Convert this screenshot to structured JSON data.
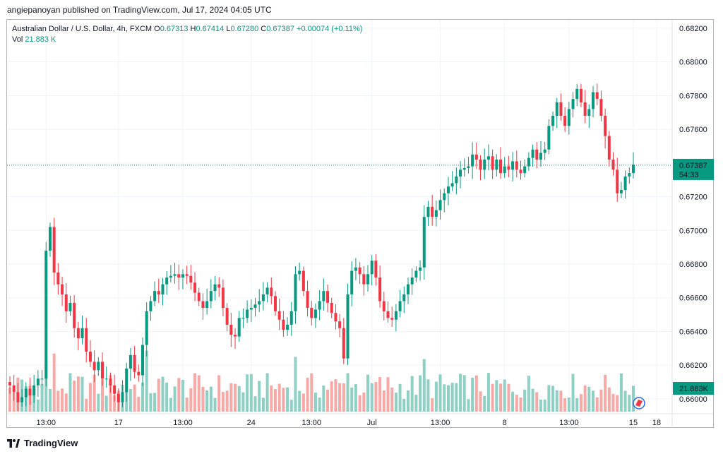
{
  "header": {
    "publish_line": "angiepanoyan published on TradingView.com, Jul 17, 2024 04:05 UTC"
  },
  "legend": {
    "symbol": "Australian Dollar / U.S. Dollar, 4h, FXCM",
    "open_label": "O",
    "open": "0.67313",
    "high_label": "H",
    "high": "0.67414",
    "low_label": "L",
    "low": "0.67280",
    "close_label": "C",
    "close": "0.67387",
    "change": "+0.00074 (+0.11%)",
    "vol_label": "Vol",
    "vol_value": "21.883 K"
  },
  "price_axis": {
    "labels": [
      "0.68200",
      "0.68000",
      "0.67800",
      "0.67600",
      "0.67400",
      "0.67200",
      "0.67000",
      "0.66800",
      "0.66600",
      "0.66400",
      "0.66200",
      "0.66000"
    ],
    "current_price_label": "0.67387",
    "countdown": "54:33",
    "volume_badge": "21.883K"
  },
  "time_axis": {
    "labels": [
      "13:00",
      "17",
      "13:00",
      "24",
      "13:00",
      "Jul",
      "13:00",
      "8",
      "13:00",
      "15",
      "18"
    ]
  },
  "footer": {
    "brand": "TradingView"
  },
  "colors": {
    "up": "#089981",
    "down": "#f23645",
    "vol_up": "#8fd0c5",
    "vol_down": "#f7a9a7",
    "grid": "#f0f3fa"
  },
  "chart_data": {
    "type": "candlestick",
    "symbol": "AUDUSD",
    "timeframe": "4h",
    "ylim": [
      0.6592,
      0.6825
    ],
    "y_ticks": [
      0.682,
      0.68,
      0.678,
      0.676,
      0.674,
      0.672,
      0.67,
      0.668,
      0.666,
      0.664,
      0.662,
      0.66
    ],
    "x_ticks": [
      "13:00",
      "17",
      "13:00",
      "24",
      "13:00",
      "Jul",
      "13:00",
      "8",
      "13:00",
      "15",
      "18"
    ],
    "last_price": 0.67387,
    "closes": [
      0.6608,
      0.6604,
      0.6598,
      0.6601,
      0.6606,
      0.6602,
      0.6608,
      0.6612,
      0.6612,
      0.6688,
      0.6702,
      0.6675,
      0.6668,
      0.6662,
      0.6652,
      0.6657,
      0.6642,
      0.6636,
      0.6642,
      0.6628,
      0.6622,
      0.6617,
      0.6622,
      0.6612,
      0.6612,
      0.6608,
      0.6603,
      0.6598,
      0.6604,
      0.6618,
      0.6626,
      0.6616,
      0.6614,
      0.6632,
      0.6652,
      0.6658,
      0.6664,
      0.6662,
      0.6668,
      0.6672,
      0.6673,
      0.6674,
      0.6672,
      0.6674,
      0.6673,
      0.6669,
      0.6663,
      0.6658,
      0.6654,
      0.6658,
      0.6664,
      0.6668,
      0.6666,
      0.6654,
      0.6644,
      0.6638,
      0.6637,
      0.6648,
      0.6648,
      0.6653,
      0.6654,
      0.6656,
      0.6658,
      0.6662,
      0.6666,
      0.6661,
      0.6652,
      0.6647,
      0.6641,
      0.6644,
      0.6652,
      0.6674,
      0.6676,
      0.6664,
      0.6654,
      0.6648,
      0.6653,
      0.6658,
      0.6664,
      0.6657,
      0.6651,
      0.6646,
      0.6642,
      0.6624,
      0.6662,
      0.6676,
      0.6678,
      0.6674,
      0.6668,
      0.6674,
      0.6682,
      0.6672,
      0.6658,
      0.6652,
      0.6648,
      0.6647,
      0.6652,
      0.6658,
      0.6662,
      0.6668,
      0.6672,
      0.6676,
      0.6678,
      0.6708,
      0.6714,
      0.6708,
      0.6712,
      0.6718,
      0.6722,
      0.6726,
      0.6728,
      0.6732,
      0.6736,
      0.6737,
      0.6738,
      0.6745,
      0.6742,
      0.6736,
      0.6742,
      0.6744,
      0.6736,
      0.6742,
      0.6734,
      0.6738,
      0.6736,
      0.6741,
      0.6736,
      0.6734,
      0.6738,
      0.6743,
      0.6748,
      0.6742,
      0.6746,
      0.6748,
      0.6762,
      0.6768,
      0.6776,
      0.6768,
      0.6762,
      0.6772,
      0.6778,
      0.6784,
      0.6776,
      0.6768,
      0.6772,
      0.6782,
      0.6778,
      0.6768,
      0.6756,
      0.6742,
      0.6736,
      0.6722,
      0.6724,
      0.6732,
      0.6734,
      0.6739
    ]
  }
}
